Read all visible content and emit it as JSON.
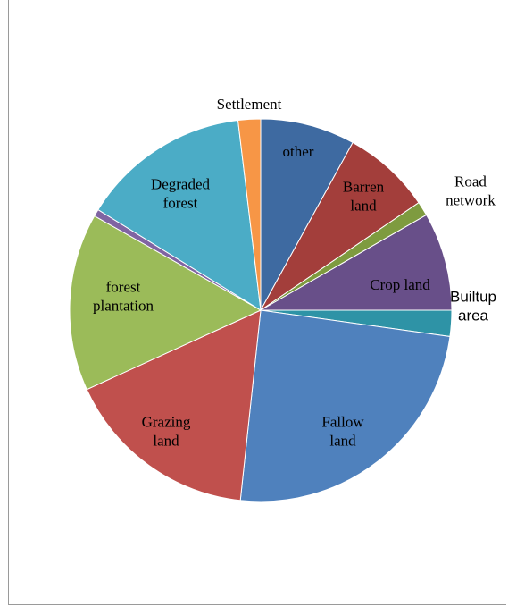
{
  "chart_data": {
    "type": "pie",
    "slices": [
      {
        "label": "other",
        "value": 8.0,
        "color": "#3E6AA1"
      },
      {
        "label": "Barren land",
        "value": 7.5,
        "color": "#A33E3B"
      },
      {
        "label": "Road network",
        "value": 1.2,
        "color": "#7E9B3F"
      },
      {
        "label": "Crop land",
        "value": 8.3,
        "color": "#684F89"
      },
      {
        "label": "Builtup area",
        "value": 2.2,
        "color": "#2E93A6"
      },
      {
        "label": "Fallow land",
        "value": 24.5,
        "color": "#4F81BD"
      },
      {
        "label": "Grazing land",
        "value": 16.5,
        "color": "#C0504D"
      },
      {
        "label": "forest plantation",
        "value": 15.0,
        "color": "#9BBB59"
      },
      {
        "label": "",
        "value": 0.6,
        "color": "#8064A2"
      },
      {
        "label": "Degraded forest",
        "value": 14.3,
        "color": "#4BACC6"
      },
      {
        "label": "Settlement",
        "value": 1.9,
        "color": "#F79646"
      }
    ],
    "labels": [
      {
        "lines": [
          "other"
        ],
        "color": "#000000",
        "font": "serif"
      },
      {
        "lines": [
          "Barren",
          "land"
        ],
        "color": "#000000",
        "font": "serif"
      },
      {
        "lines": [
          "Road",
          "network"
        ],
        "color": "#000000",
        "font": "serif"
      },
      {
        "lines": [
          "Crop land"
        ],
        "color": "#000000",
        "font": "serif"
      },
      {
        "lines": [
          "Builtup",
          "area"
        ],
        "color": "#000000",
        "font": "sans"
      },
      {
        "lines": [
          "Fallow",
          "land"
        ],
        "color": "#000000",
        "font": "serif"
      },
      {
        "lines": [
          "Grazing",
          "land"
        ],
        "color": "#000000",
        "font": "serif"
      },
      {
        "lines": [
          "forest",
          "plantation"
        ],
        "color": "#000000",
        "font": "serif"
      },
      {
        "lines": [],
        "color": "#000000",
        "font": "serif"
      },
      {
        "lines": [
          "Degraded",
          "forest"
        ],
        "color": "#000000",
        "font": "serif"
      },
      {
        "lines": [
          "Settlement"
        ],
        "color": "#000000",
        "font": "serif"
      }
    ],
    "start_angle": "top (12 o'clock)",
    "direction": "clockwise",
    "legend": "none"
  }
}
